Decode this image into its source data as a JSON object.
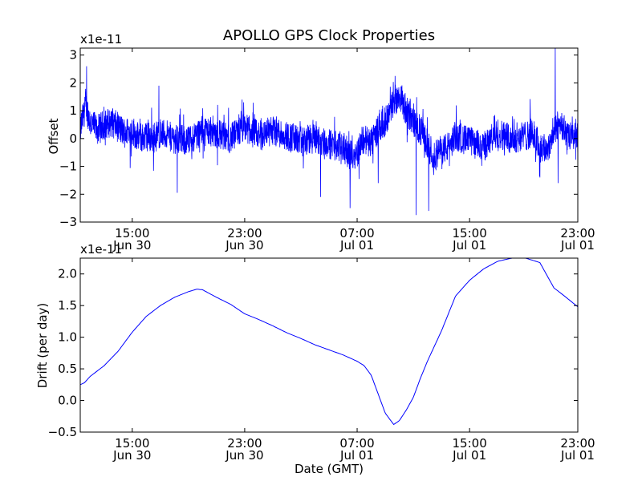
{
  "chart_data": [
    {
      "type": "line",
      "title": "APOLLO GPS Clock Properties",
      "xlabel": "",
      "ylabel": "Offset",
      "offset_text": "x1e-11",
      "ylim": [
        -3,
        3.25
      ],
      "yticks": [
        -3,
        -2,
        -1,
        0,
        1,
        2,
        3
      ],
      "ytick_labels": [
        "−3",
        "−2",
        "−1",
        "0",
        "1",
        "2",
        "3"
      ],
      "x_start_hours": 11.3,
      "x_end_hours": 46.7,
      "xticks": [
        {
          "hours": 15,
          "time": "15:00",
          "date": "Jun 30"
        },
        {
          "hours": 23,
          "time": "23:00",
          "date": "Jun 30"
        },
        {
          "hours": 31,
          "time": "07:00",
          "date": "Jul 01"
        },
        {
          "hours": 39,
          "time": "15:00",
          "date": "Jul 01"
        },
        {
          "hours": 47,
          "time": "23:00",
          "date": "Jul 01"
        }
      ],
      "grid": false,
      "series": [
        {
          "color": "#0000ff",
          "noise": true,
          "x": [
            11.3,
            11.5,
            11.7,
            12.0,
            12.5,
            13.0,
            13.5,
            14.0,
            14.5,
            15.0,
            15.5,
            16.0,
            16.5,
            17.0,
            18.0,
            19.0,
            20.0,
            21.0,
            22.0,
            23.0,
            24.0,
            25.0,
            26.0,
            27.0,
            28.0,
            29.0,
            30.0,
            30.5,
            31.0,
            31.5,
            32.0,
            32.5,
            33.0,
            33.5,
            34.0,
            34.5,
            35.0,
            35.5,
            36.0,
            36.5,
            37.0,
            37.5,
            38.0,
            39.0,
            40.0,
            41.0,
            42.0,
            43.0,
            43.5,
            44.0,
            44.5,
            45.0,
            45.5,
            46.0,
            46.7
          ],
          "y": [
            0.3,
            0.8,
            1.2,
            0.6,
            0.3,
            0.5,
            0.6,
            0.4,
            0.2,
            0.3,
            0.0,
            0.1,
            0.0,
            0.2,
            0.0,
            -0.1,
            0.3,
            0.2,
            0.0,
            0.4,
            0.1,
            0.3,
            0.1,
            -0.1,
            0.0,
            -0.2,
            -0.3,
            -0.6,
            -0.5,
            0.0,
            -0.2,
            0.4,
            0.6,
            1.2,
            1.6,
            1.0,
            0.6,
            0.3,
            -0.2,
            -0.7,
            -0.4,
            -0.3,
            0.1,
            -0.1,
            -0.3,
            0.2,
            0.0,
            0.1,
            0.2,
            -0.3,
            -0.4,
            0.2,
            0.6,
            0.0,
            0.2
          ],
          "spikes": [
            [
              11.75,
              2.6
            ],
            [
              16.9,
              1.9
            ],
            [
              18.2,
              -1.95
            ],
            [
              28.4,
              -2.1
            ],
            [
              30.5,
              -2.5
            ],
            [
              32.5,
              -1.6
            ],
            [
              33.7,
              2.25
            ],
            [
              35.2,
              -2.75
            ],
            [
              36.1,
              -2.6
            ],
            [
              45.1,
              3.25
            ],
            [
              45.3,
              -1.6
            ],
            [
              44.0,
              -1.4
            ]
          ]
        }
      ]
    },
    {
      "type": "line",
      "title": "",
      "xlabel": "Date (GMT)",
      "ylabel": "Drift (per day)",
      "offset_text": "x1e-11",
      "ylim": [
        -0.5,
        2.25
      ],
      "yticks": [
        -0.5,
        0.0,
        0.5,
        1.0,
        1.5,
        2.0
      ],
      "ytick_labels": [
        "−0.5",
        "0.0",
        "0.5",
        "1.0",
        "1.5",
        "2.0"
      ],
      "x_start_hours": 11.3,
      "x_end_hours": 46.7,
      "xticks": [
        {
          "hours": 15,
          "time": "15:00",
          "date": "Jun 30"
        },
        {
          "hours": 23,
          "time": "23:00",
          "date": "Jun 30"
        },
        {
          "hours": 31,
          "time": "07:00",
          "date": "Jul 01"
        },
        {
          "hours": 39,
          "time": "15:00",
          "date": "Jul 01"
        },
        {
          "hours": 47,
          "time": "23:00",
          "date": "Jul 01"
        }
      ],
      "grid": false,
      "series": [
        {
          "color": "#0000ff",
          "noise": false,
          "x": [
            11.3,
            11.6,
            12.0,
            13.0,
            14.0,
            15.0,
            16.0,
            17.0,
            18.0,
            19.0,
            19.6,
            20.0,
            21.0,
            22.0,
            23.0,
            24.0,
            25.0,
            26.0,
            27.0,
            28.0,
            29.0,
            30.0,
            31.0,
            31.5,
            32.0,
            32.5,
            33.0,
            33.6,
            34.0,
            34.5,
            35.0,
            35.5,
            36.0,
            37.0,
            38.0,
            39.0,
            40.0,
            41.0,
            42.0,
            43.0,
            44.0,
            44.5,
            45.0,
            45.7,
            46.7
          ],
          "y": [
            0.25,
            0.28,
            0.38,
            0.55,
            0.78,
            1.08,
            1.33,
            1.5,
            1.63,
            1.72,
            1.76,
            1.75,
            1.63,
            1.52,
            1.37,
            1.28,
            1.18,
            1.07,
            0.98,
            0.88,
            0.8,
            0.72,
            0.62,
            0.55,
            0.4,
            0.1,
            -0.2,
            -0.38,
            -0.32,
            -0.15,
            0.05,
            0.35,
            0.62,
            1.1,
            1.65,
            1.9,
            2.08,
            2.2,
            2.25,
            2.25,
            2.18,
            1.98,
            1.78,
            1.66,
            1.48
          ]
        }
      ]
    }
  ]
}
